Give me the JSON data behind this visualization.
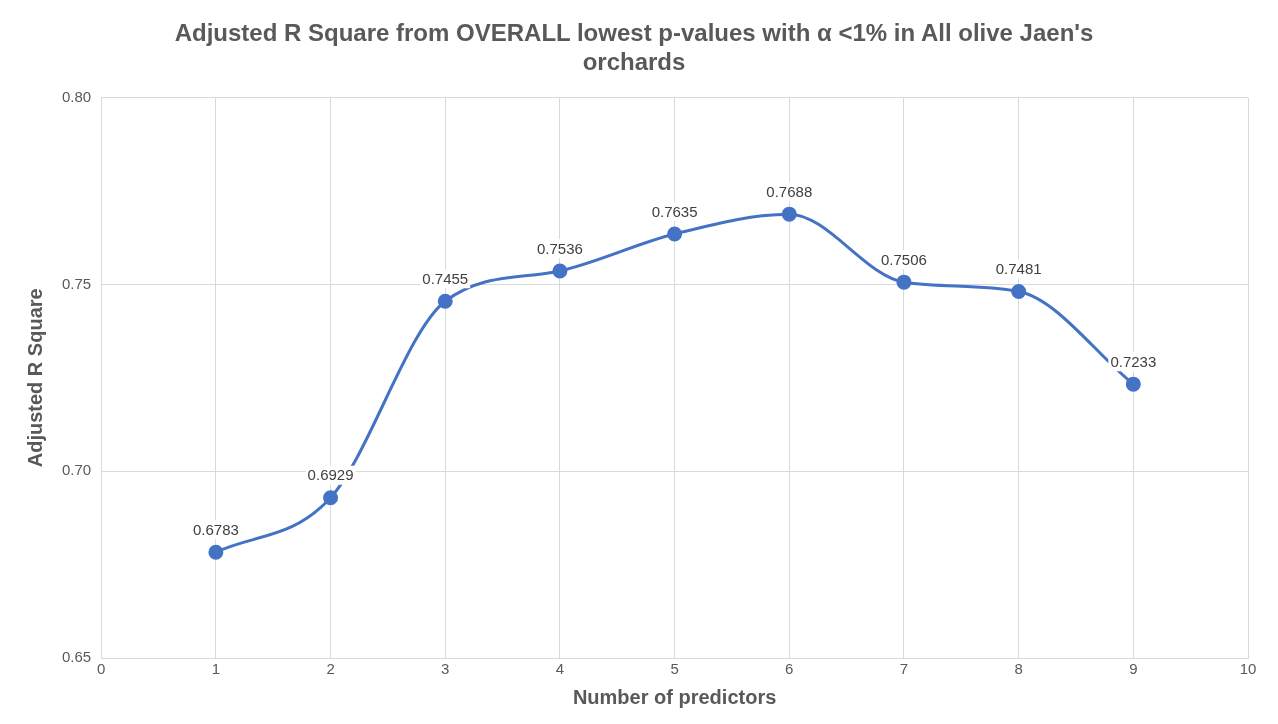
{
  "chart_data": {
    "type": "line",
    "title": "Adjusted R Square from OVERALL lowest p-values with α <1% in All olive Jaen's orchards",
    "xlabel": "Number of predictors",
    "ylabel": "Adjusted R Square",
    "x": [
      1,
      2,
      3,
      4,
      5,
      6,
      7,
      8,
      9
    ],
    "series": [
      {
        "color": "#4472c4",
        "values": [
          0.6783,
          0.6929,
          0.7455,
          0.7536,
          0.7635,
          0.7688,
          0.7506,
          0.7481,
          0.7233
        ]
      }
    ],
    "xlim": [
      0,
      10
    ],
    "xticks": [
      0,
      1,
      2,
      3,
      4,
      5,
      6,
      7,
      8,
      9,
      10
    ],
    "ylim": [
      0.65,
      0.8
    ],
    "yticks": [
      {
        "value": 0.65,
        "label": "0.65"
      },
      {
        "value": 0.7,
        "label": "0.70"
      },
      {
        "value": 0.75,
        "label": "0.75"
      },
      {
        "value": 0.8,
        "label": "0.80"
      }
    ],
    "grid": true,
    "marker": "circle",
    "line_style": "solid",
    "data_labels": true
  }
}
